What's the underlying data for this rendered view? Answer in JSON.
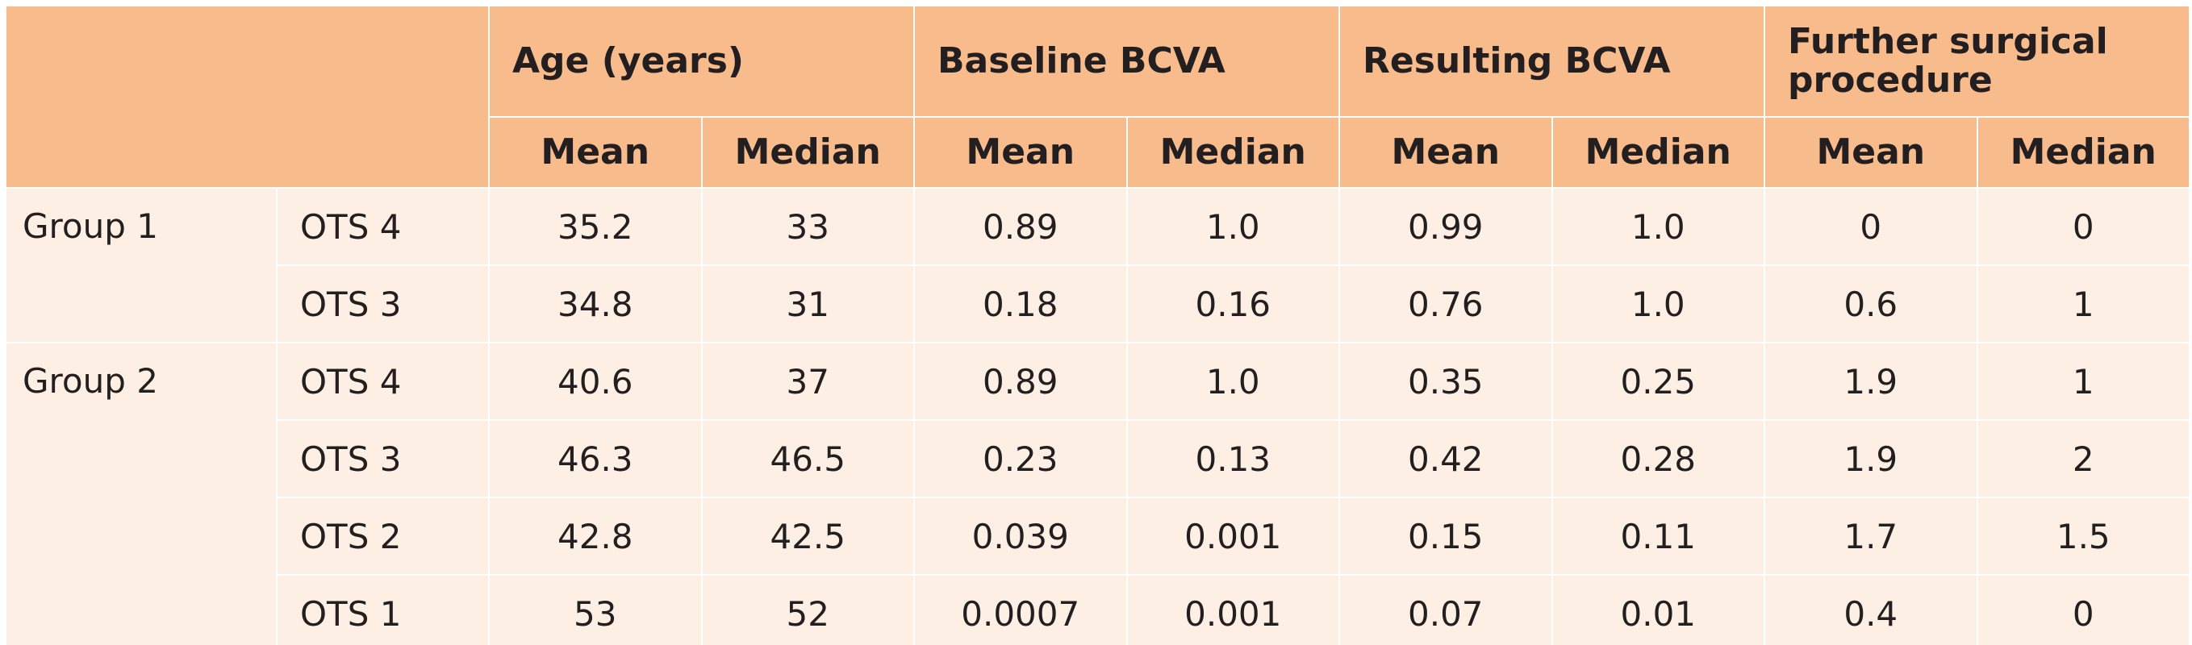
{
  "header": {
    "groups": [
      {
        "label": "Age (years)"
      },
      {
        "label": "Baseline BCVA"
      },
      {
        "label": "Resulting BCVA"
      },
      {
        "label": "Further surgical procedure"
      }
    ],
    "sub": {
      "mean": "Mean",
      "median": "Median"
    }
  },
  "groups": [
    {
      "label": "Group 1",
      "rows": [
        {
          "ots": "OTS 4",
          "values": [
            "35.2",
            "33",
            "0.89",
            "1.0",
            "0.99",
            "1.0",
            "0",
            "0"
          ]
        },
        {
          "ots": "OTS 3",
          "values": [
            "34.8",
            "31",
            "0.18",
            "0.16",
            "0.76",
            "1.0",
            "0.6",
            "1"
          ]
        }
      ]
    },
    {
      "label": "Group 2",
      "rows": [
        {
          "ots": "OTS 4",
          "values": [
            "40.6",
            "37",
            "0.89",
            "1.0",
            "0.35",
            "0.25",
            "1.9",
            "1"
          ]
        },
        {
          "ots": "OTS 3",
          "values": [
            "46.3",
            "46.5",
            "0.23",
            "0.13",
            "0.42",
            "0.28",
            "1.9",
            "2"
          ]
        },
        {
          "ots": "OTS 2",
          "values": [
            "42.8",
            "42.5",
            "0.039",
            "0.001",
            "0.15",
            "0.11",
            "1.7",
            "1.5"
          ]
        },
        {
          "ots": "OTS 1",
          "values": [
            "53",
            "52",
            "0.0007",
            "0.001",
            "0.07",
            "0.01",
            "0.4",
            "0"
          ]
        }
      ]
    }
  ],
  "colors": {
    "header_bg": "#f8bc8c",
    "body_bg": "#fdefe4",
    "grid": "#ffffff"
  }
}
